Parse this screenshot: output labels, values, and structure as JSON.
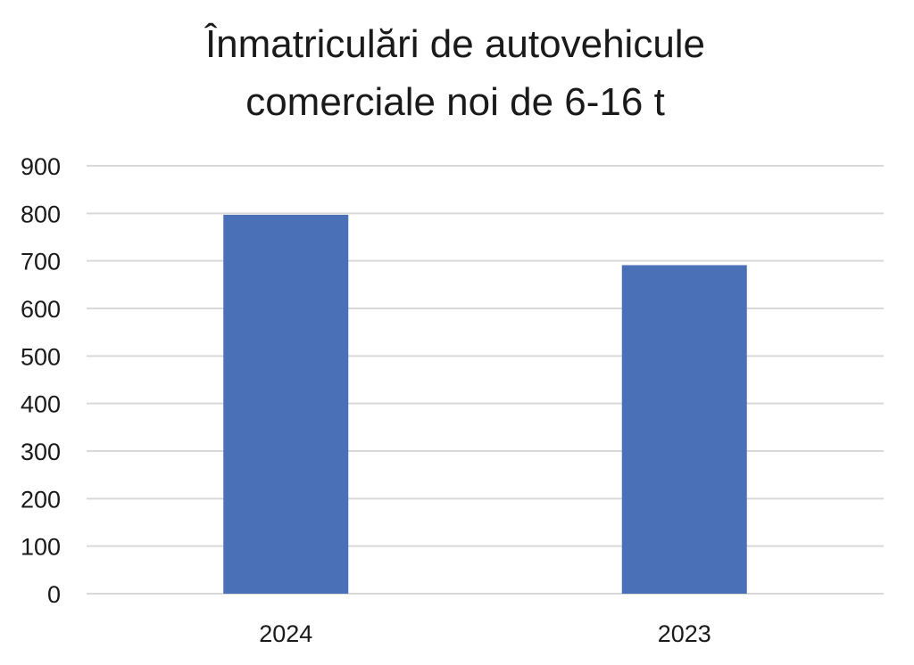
{
  "chart_data": {
    "type": "bar",
    "title_lines": [
      "Înmatriculări de autovehicule",
      "comerciale noi de 6-16 t"
    ],
    "categories": [
      "2024",
      "2023"
    ],
    "values": [
      797,
      691
    ],
    "xlabel": "",
    "ylabel": "",
    "ylim": [
      0,
      900
    ],
    "yticks": [
      "0",
      "100",
      "200",
      "300",
      "400",
      "500",
      "600",
      "700",
      "800",
      "900"
    ],
    "grid": true,
    "legend": "none",
    "bar_color": "#4A70B8"
  }
}
